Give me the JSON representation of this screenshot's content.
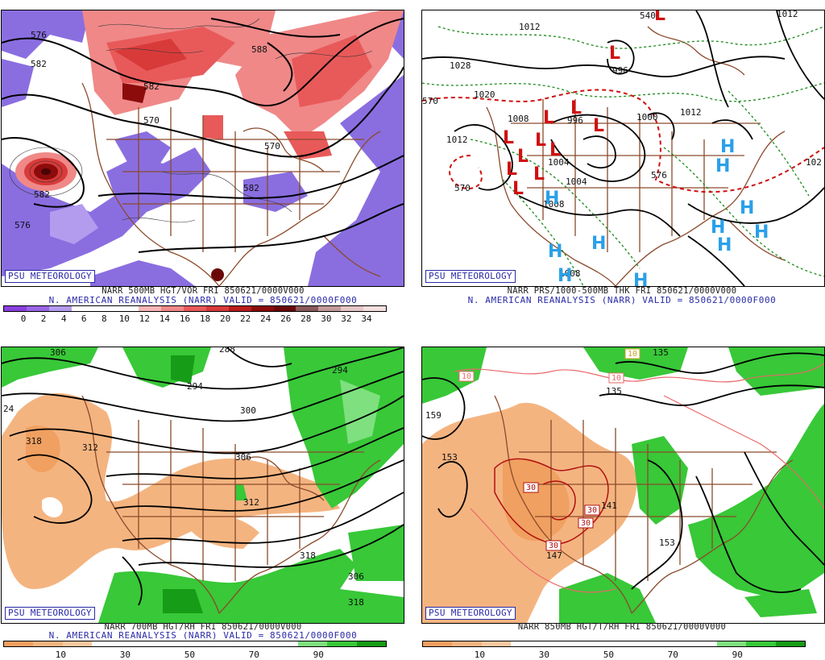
{
  "badge": "PSU METEOROLOGY",
  "panels": [
    {
      "id": "tl",
      "caption1": "NARR 500MB HGT/VOR FRI 850621/0000V000",
      "caption2": "N. AMERICAN REANALYSIS (NARR) VALID = 850621/0000F000",
      "colorbar": {
        "colors": [
          "#8a3fe0",
          "#9a66e6",
          "#b39cee",
          "#ffffff",
          "#ffffff",
          "#ffffff",
          "#f7b6b6",
          "#f08888",
          "#e85a5a",
          "#d83a3a",
          "#b81c1c",
          "#8c0c0c",
          "#6a0808",
          "#8a5a5a",
          "#c29a9a",
          "#e6c6c6",
          "#f4dede"
        ],
        "labels": [
          "0",
          "2",
          "4",
          "6",
          "8",
          "10",
          "12",
          "14",
          "16",
          "18",
          "20",
          "22",
          "24",
          "26",
          "28",
          "30",
          "32",
          "34"
        ]
      },
      "contour_labels": [
        "576",
        "582",
        "570",
        "582",
        "570",
        "582",
        "588",
        "582",
        "576"
      ]
    },
    {
      "id": "tr",
      "caption1": "NARR PRS/1000-500MB THK FRI 850621/0000V000",
      "caption2": "N. AMERICAN REANALYSIS (NARR) VALID = 850621/0000F000",
      "contour_labels": [
        "1012",
        "1028",
        "1020",
        "1012",
        "1008",
        "1004",
        "996",
        "996",
        "1000",
        "1004",
        "1008",
        "1012",
        "1008",
        "1012",
        "102",
        "540",
        "570",
        "570",
        "576"
      ],
      "symbols": {
        "low": "L",
        "high": "H"
      }
    },
    {
      "id": "bl",
      "caption1": "NARR 700MB HGT/RH FRI 850621/0000V000",
      "caption2": "N. AMERICAN REANALYSIS (NARR) VALID = 850621/0000F000",
      "colorbar": {
        "colors": [
          "#f0a060",
          "#f4b480",
          "#f8c8a0",
          "#ffffff",
          "#ffffff",
          "#ffffff",
          "#ffffff",
          "#ffffff",
          "#ffffff",
          "#ffffff",
          "#7ee07e",
          "#38c838",
          "#169c16"
        ],
        "labels": [
          "10",
          "30",
          "50",
          "70",
          "90"
        ]
      },
      "contour_labels": [
        "306",
        "288",
        "294",
        "294",
        "24",
        "318",
        "312",
        "300",
        "306",
        "312",
        "318",
        "306",
        "318"
      ]
    },
    {
      "id": "br",
      "caption1": "NARR 850MB HGT/T/RH FRI 850621/0000V000",
      "colorbar": {
        "colors": [
          "#f0a060",
          "#f4b480",
          "#f8c8a0",
          "#ffffff",
          "#ffffff",
          "#ffffff",
          "#ffffff",
          "#ffffff",
          "#ffffff",
          "#ffffff",
          "#7ee07e",
          "#38c838",
          "#169c16"
        ],
        "labels": [
          "10",
          "30",
          "50",
          "70",
          "90"
        ]
      },
      "contour_labels": [
        "135",
        "159",
        "153",
        "141",
        "153",
        "147",
        "135",
        "10",
        "10",
        "10",
        "30",
        "30",
        "30",
        "30"
      ]
    }
  ]
}
